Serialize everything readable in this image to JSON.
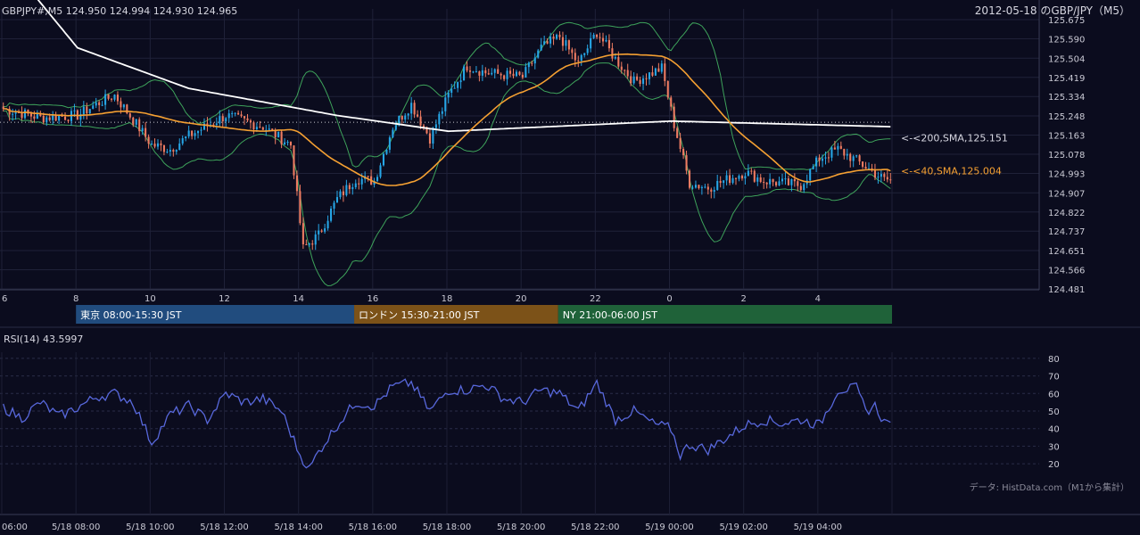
{
  "header": {
    "symbol_ohlc": "GBPJPY#,M5 124.950 124.994 124.930 124.965",
    "title": "2012-05-18 のGBP/JPY（M5）"
  },
  "chart_data": [
    {
      "type": "candlestick",
      "name": "price",
      "ylim": [
        124.481,
        125.675
      ],
      "price_ticks": [
        "125.675",
        "125.590",
        "125.504",
        "125.419",
        "125.334",
        "125.248",
        "125.163",
        "125.078",
        "124.993",
        "124.907",
        "124.822",
        "124.737",
        "124.651",
        "124.566",
        "124.481"
      ],
      "x_tick_labels": [
        "6",
        "8",
        "10",
        "12",
        "14",
        "16",
        "18",
        "20",
        "22",
        "0",
        "2",
        "4"
      ],
      "reference_line": 125.22,
      "key_points": {
        "close_path": [
          [
            "06:00",
            125.28
          ],
          [
            "07:00",
            125.24
          ],
          [
            "08:00",
            125.25
          ],
          [
            "08:30",
            125.3
          ],
          [
            "09:00",
            125.34
          ],
          [
            "10:00",
            125.12
          ],
          [
            "10:30",
            125.1
          ],
          [
            "11:00",
            125.16
          ],
          [
            "12:00",
            125.25
          ],
          [
            "13:00",
            125.2
          ],
          [
            "13:45",
            125.12
          ],
          [
            "14:05",
            124.66
          ],
          [
            "14:30",
            124.72
          ],
          [
            "15:00",
            124.88
          ],
          [
            "15:30",
            124.97
          ],
          [
            "16:00",
            124.96
          ],
          [
            "16:30",
            125.2
          ],
          [
            "17:00",
            125.3
          ],
          [
            "17:30",
            125.15
          ],
          [
            "18:00",
            125.34
          ],
          [
            "18:30",
            125.47
          ],
          [
            "19:00",
            125.44
          ],
          [
            "20:00",
            125.42
          ],
          [
            "20:30",
            125.55
          ],
          [
            "21:00",
            125.6
          ],
          [
            "21:30",
            125.48
          ],
          [
            "22:00",
            125.62
          ],
          [
            "22:30",
            125.5
          ],
          [
            "23:00",
            125.4
          ],
          [
            "23:45",
            125.46
          ],
          [
            "00:05",
            125.21
          ],
          [
            "00:30",
            124.95
          ],
          [
            "01:00",
            124.93
          ],
          [
            "02:00",
            125.0
          ],
          [
            "02:30",
            124.96
          ],
          [
            "03:00",
            124.95
          ],
          [
            "03:30",
            124.94
          ],
          [
            "04:00",
            125.06
          ],
          [
            "04:30",
            125.1
          ],
          [
            "05:00",
            125.05
          ],
          [
            "05:45",
            124.965
          ]
        ]
      },
      "indicators": [
        {
          "label": "<-<200,SMA,125.151",
          "value": 125.151,
          "color": "#ffffff"
        },
        {
          "label": "<-<40,SMA,125.004",
          "value": 125.004,
          "color": "#f5a032"
        }
      ],
      "bollinger_color": "#3ea35b",
      "up_color": "#26a6e6",
      "down_color": "#ef7c62"
    },
    {
      "type": "line",
      "name": "rsi",
      "title": "RSI(14) 43.5997",
      "ylim": [
        15,
        85
      ],
      "y_ticks": [
        80,
        70,
        60,
        50,
        40,
        30,
        20
      ],
      "color": "#5868dc",
      "key_points": [
        [
          "06:00",
          52
        ],
        [
          "06:30",
          46
        ],
        [
          "07:00",
          55
        ],
        [
          "07:30",
          47
        ],
        [
          "08:00",
          52
        ],
        [
          "08:30",
          58
        ],
        [
          "09:00",
          60
        ],
        [
          "09:30",
          55
        ],
        [
          "10:00",
          32
        ],
        [
          "10:30",
          48
        ],
        [
          "11:00",
          53
        ],
        [
          "11:30",
          45
        ],
        [
          "12:00",
          60
        ],
        [
          "12:30",
          55
        ],
        [
          "13:00",
          57
        ],
        [
          "13:30",
          50
        ],
        [
          "14:00",
          25
        ],
        [
          "14:15",
          17
        ],
        [
          "14:30",
          27
        ],
        [
          "15:00",
          42
        ],
        [
          "15:30",
          55
        ],
        [
          "16:00",
          53
        ],
        [
          "16:30",
          64
        ],
        [
          "17:00",
          66
        ],
        [
          "17:30",
          50
        ],
        [
          "18:00",
          62
        ],
        [
          "18:30",
          62
        ],
        [
          "19:00",
          65
        ],
        [
          "19:30",
          57
        ],
        [
          "20:00",
          55
        ],
        [
          "20:30",
          62
        ],
        [
          "21:00",
          60
        ],
        [
          "21:30",
          50
        ],
        [
          "22:00",
          66
        ],
        [
          "22:30",
          45
        ],
        [
          "23:00",
          50
        ],
        [
          "23:30",
          43
        ],
        [
          "00:00",
          40
        ],
        [
          "00:15",
          25
        ],
        [
          "00:30",
          31
        ],
        [
          "01:00",
          28
        ],
        [
          "01:30",
          35
        ],
        [
          "02:00",
          42
        ],
        [
          "02:30",
          45
        ],
        [
          "03:00",
          43
        ],
        [
          "03:30",
          45
        ],
        [
          "04:00",
          42
        ],
        [
          "04:30",
          62
        ],
        [
          "05:00",
          63
        ],
        [
          "05:15",
          50
        ],
        [
          "05:30",
          53
        ],
        [
          "05:45",
          43.6
        ]
      ]
    }
  ],
  "sessions": [
    {
      "label": "東京 08:00-15:30 JST",
      "color": "#214c7e"
    },
    {
      "label": "ロンドン 15:30-21:00 JST",
      "color": "#7c5218"
    },
    {
      "label": "NY 21:00-06:00 JST",
      "color": "#1f6239"
    }
  ],
  "bottom_axis": [
    "06:00",
    "5/18 08:00",
    "5/18 10:00",
    "5/18 12:00",
    "5/18 14:00",
    "5/18 16:00",
    "5/18 18:00",
    "5/18 20:00",
    "5/18 22:00",
    "5/19 00:00",
    "5/19 02:00",
    "5/19 04:00"
  ],
  "source": "データ: HistData.com（M1から集計）"
}
